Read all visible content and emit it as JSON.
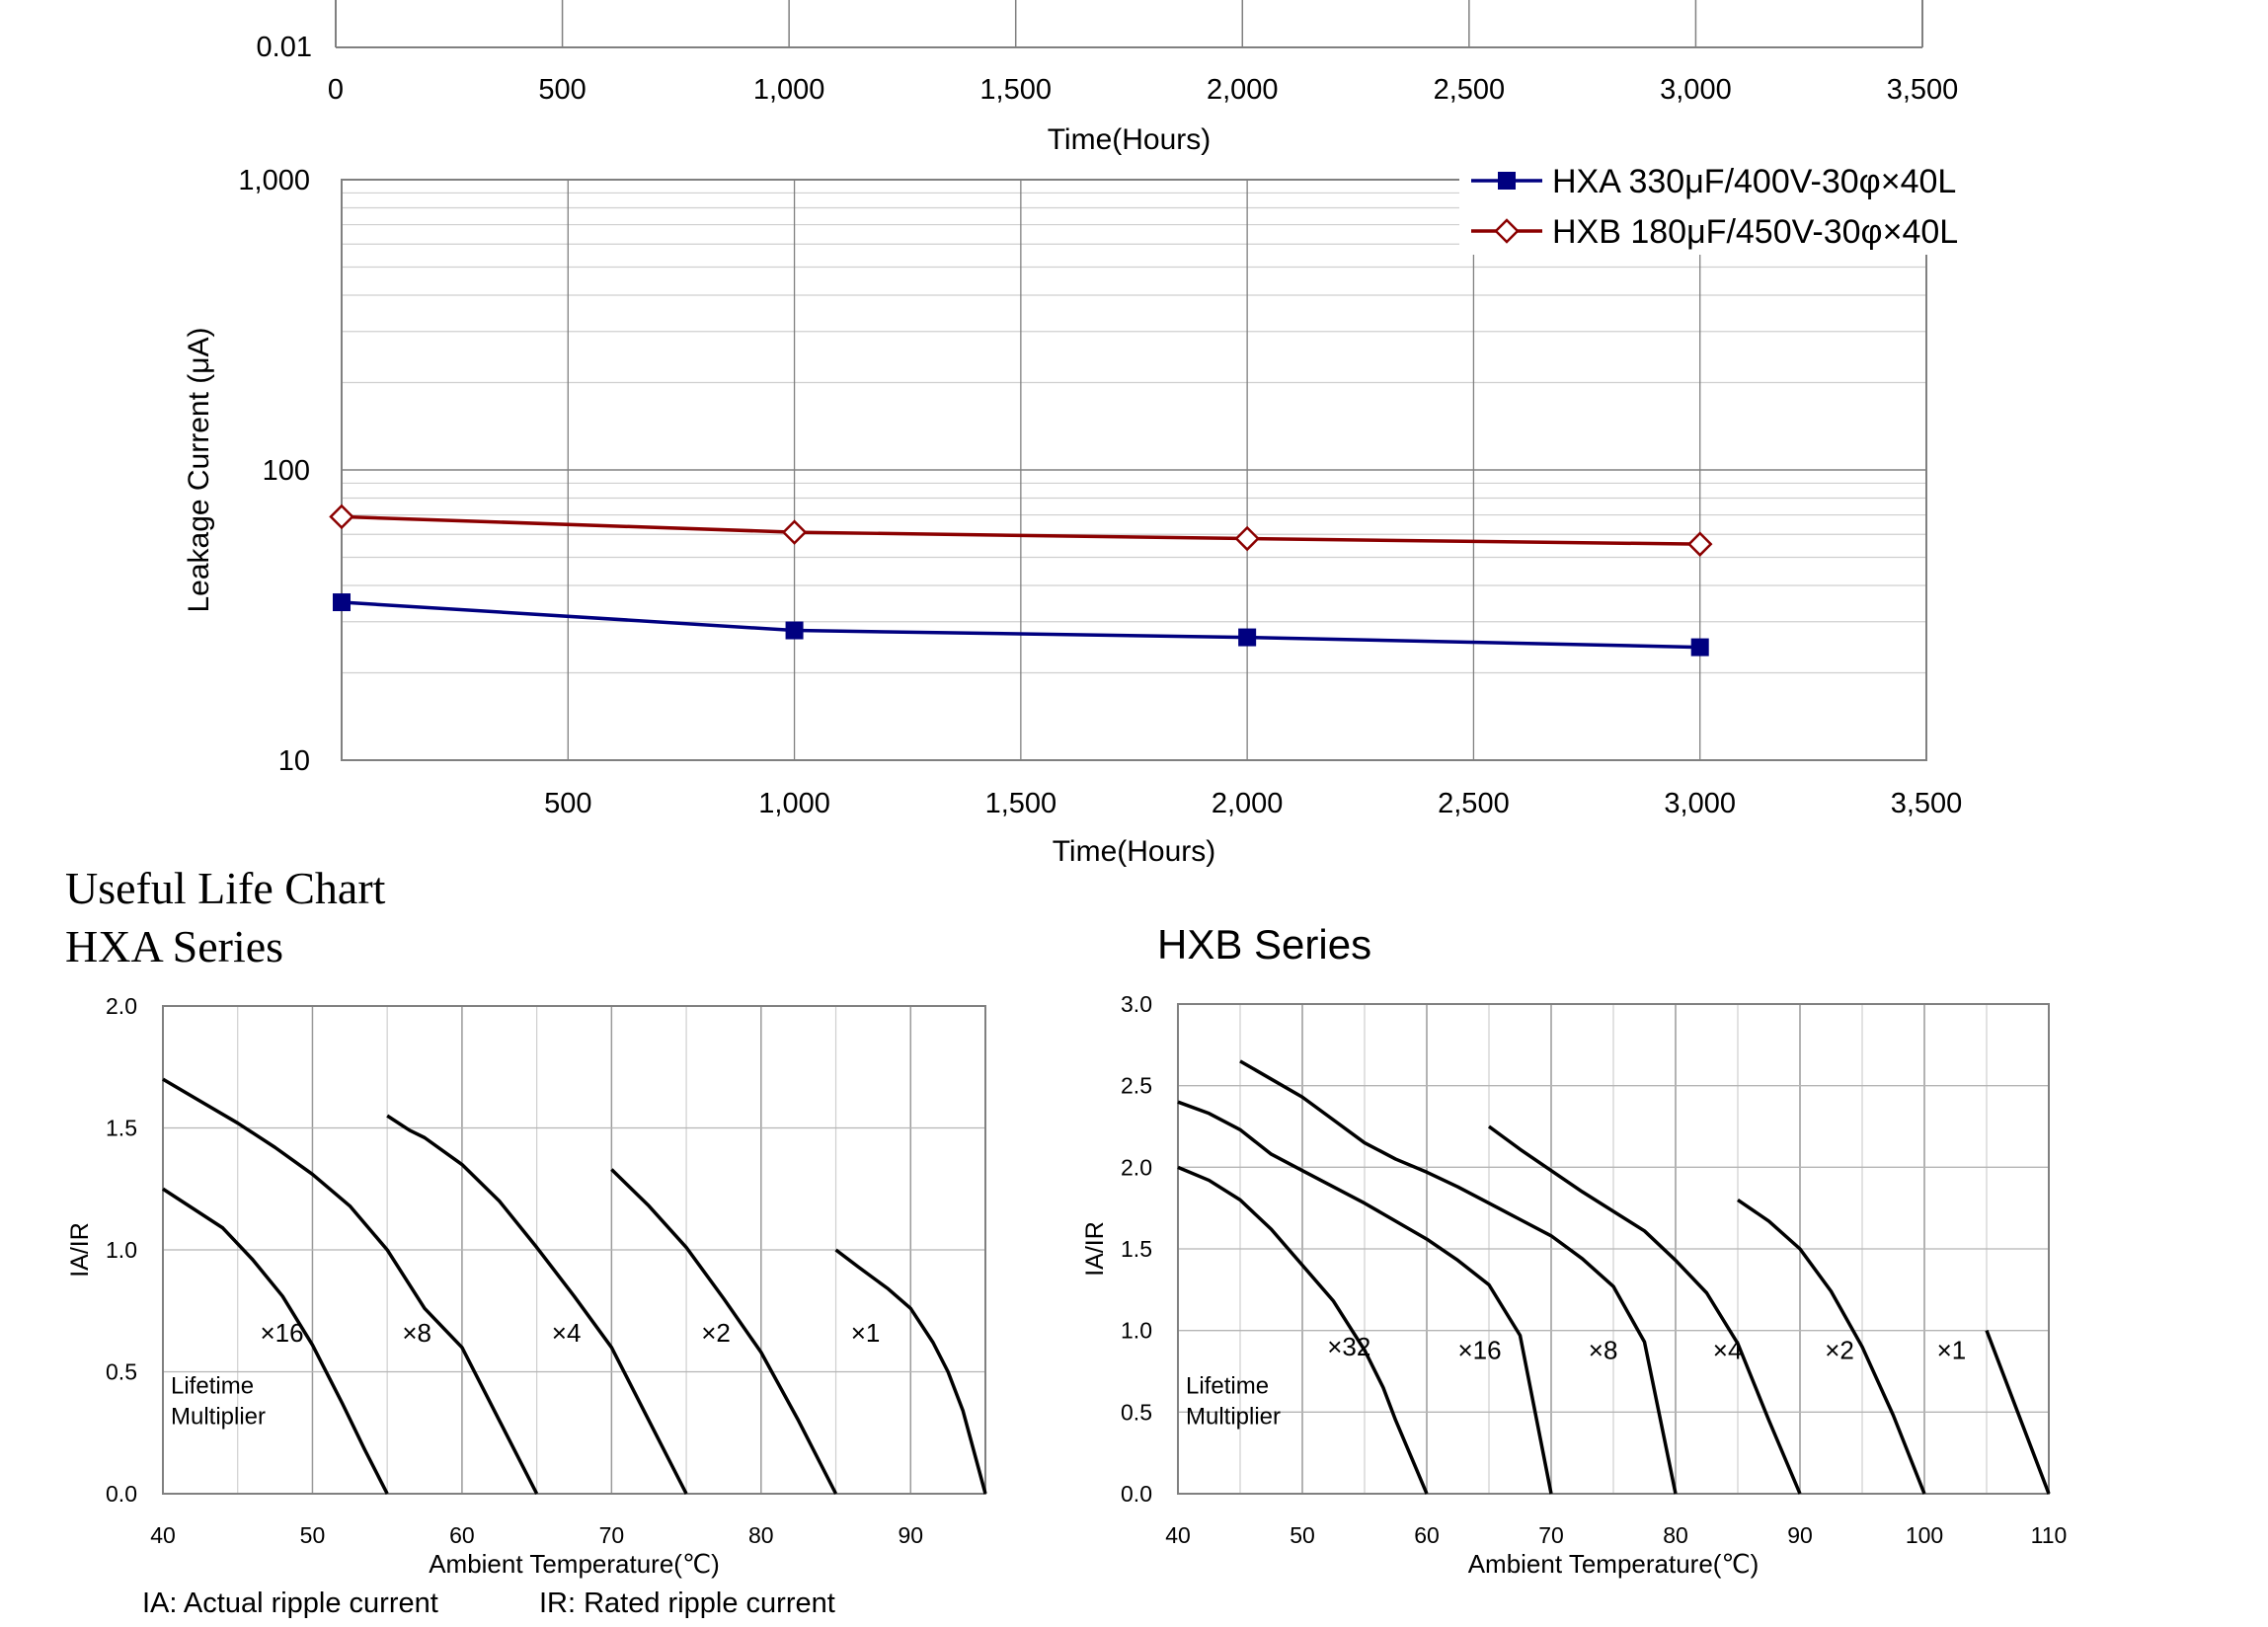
{
  "section_title": "Useful Life Chart",
  "footnotes": {
    "ia": "IA: Actual ripple current",
    "ir": "IR: Rated ripple current"
  },
  "colors": {
    "hxa_line": "#000080",
    "hxb_line": "#8B0000",
    "grid_major": "#808080",
    "grid_minor": "#cfcfcf",
    "curve": "#000000"
  },
  "chart_data": [
    {
      "id": "top-partial",
      "type": "line",
      "partial": true,
      "xlabel": "Time(Hours)",
      "ylabel": "",
      "x_ticks": [
        "0",
        "500",
        "1,000",
        "1,500",
        "2,000",
        "2,500",
        "3,000",
        "3,500"
      ],
      "y_ticks_visible": [
        "0.01"
      ],
      "xlim": [
        0,
        3500
      ],
      "grid": true
    },
    {
      "id": "leakage",
      "type": "line",
      "title": "",
      "xlabel": "Time(Hours)",
      "ylabel": "Leakage Current (μA)",
      "yscale": "log",
      "ylim": [
        10,
        1000
      ],
      "xlim": [
        0,
        3500
      ],
      "y_ticks": [
        "1,000",
        "100",
        "10"
      ],
      "x_ticks": [
        "500",
        "1,000",
        "1,500",
        "2,000",
        "2,500",
        "3,000",
        "3,500"
      ],
      "legend_position": "top-right",
      "grid": true,
      "series": [
        {
          "name": "HXA 330μF/400V-30φ×40L",
          "color": "#000080",
          "marker": "filled-square",
          "x": [
            0,
            1000,
            2000,
            3000
          ],
          "y": [
            35,
            28,
            26.5,
            24.5
          ]
        },
        {
          "name": "HXB 180μF/450V-30φ×40L",
          "color": "#8B0000",
          "marker": "open-diamond",
          "x": [
            0,
            1000,
            2000,
            3000
          ],
          "y": [
            69,
            61,
            58,
            55.5
          ]
        }
      ]
    },
    {
      "id": "hxa-life",
      "type": "line",
      "title": "HXA Series",
      "xlabel": "Ambient Temperature(℃)",
      "ylabel": "IA/IR",
      "xlim": [
        40,
        95
      ],
      "ylim": [
        0,
        2
      ],
      "x_ticks": [
        "40",
        "50",
        "60",
        "70",
        "80",
        "90"
      ],
      "y_ticks": [
        "2.0",
        "1.5",
        "1.0",
        "0.5",
        "0.0"
      ],
      "grid": true,
      "annotation": [
        "Lifetime",
        "Multiplier"
      ],
      "series": [
        {
          "name": "×16",
          "label_at": [
            46.5,
            0.66
          ],
          "x": [
            40,
            42,
            44,
            46,
            48,
            50,
            52,
            53.5,
            55
          ],
          "y": [
            1.25,
            1.17,
            1.09,
            0.96,
            0.81,
            0.61,
            0.37,
            0.18,
            0
          ]
        },
        {
          "name": "×8",
          "label_at": [
            56,
            0.66
          ],
          "x": [
            40,
            42.5,
            45,
            47.5,
            50,
            52.5,
            55,
            57.5,
            60,
            62.5,
            65
          ],
          "y": [
            1.7,
            1.61,
            1.52,
            1.42,
            1.31,
            1.18,
            1.0,
            0.76,
            0.6,
            0.3,
            0
          ]
        },
        {
          "name": "×4",
          "label_at": [
            66,
            0.66
          ],
          "x": [
            55,
            56.5,
            57.5,
            60,
            62.5,
            65,
            67.5,
            70,
            72.5,
            75
          ],
          "y": [
            1.55,
            1.49,
            1.46,
            1.35,
            1.2,
            1.01,
            0.81,
            0.6,
            0.3,
            0
          ]
        },
        {
          "name": "×2",
          "label_at": [
            76,
            0.66
          ],
          "x": [
            70,
            72.5,
            75,
            77.5,
            80,
            82.5,
            85
          ],
          "y": [
            1.33,
            1.18,
            1.01,
            0.8,
            0.58,
            0.3,
            0
          ]
        },
        {
          "name": "×1",
          "label_at": [
            86,
            0.66
          ],
          "x": [
            85,
            86.5,
            88.5,
            90,
            91.5,
            92.5,
            93.5,
            95
          ],
          "y": [
            1.0,
            0.93,
            0.84,
            0.76,
            0.62,
            0.5,
            0.34,
            0
          ]
        }
      ]
    },
    {
      "id": "hxb-life",
      "type": "line",
      "title": "HXB Series",
      "xlabel": "Ambient Temperature(℃)",
      "ylabel": "IA/IR",
      "xlim": [
        40,
        110
      ],
      "ylim": [
        0,
        3
      ],
      "x_ticks": [
        "40",
        "50",
        "60",
        "70",
        "80",
        "90",
        "100",
        "110"
      ],
      "y_ticks": [
        "3.0",
        "2.5",
        "2.0",
        "1.5",
        "1.0",
        "0.5",
        "0.0"
      ],
      "grid": true,
      "annotation": [
        "Lifetime",
        "Multiplier"
      ],
      "series": [
        {
          "name": "×32",
          "label_at": [
            52,
            0.9
          ],
          "x": [
            40,
            42.5,
            45,
            47.5,
            50,
            52.5,
            55,
            56.5,
            57.5,
            59,
            60
          ],
          "y": [
            2.0,
            1.92,
            1.8,
            1.62,
            1.4,
            1.18,
            0.88,
            0.65,
            0.45,
            0.18,
            0
          ]
        },
        {
          "name": "×16",
          "label_at": [
            62.5,
            0.88
          ],
          "x": [
            40,
            42.5,
            45,
            47.5,
            50,
            55,
            60,
            62.5,
            65,
            67.5,
            70
          ],
          "y": [
            2.4,
            2.33,
            2.23,
            2.08,
            1.98,
            1.78,
            1.56,
            1.43,
            1.28,
            0.97,
            0
          ]
        },
        {
          "name": "×8",
          "label_at": [
            73,
            0.88
          ],
          "x": [
            45,
            47.5,
            50,
            52.5,
            55,
            57.5,
            60,
            62.5,
            65,
            67.5,
            70,
            72.5,
            75,
            77.5,
            80
          ],
          "y": [
            2.65,
            2.54,
            2.43,
            2.29,
            2.15,
            2.05,
            1.97,
            1.88,
            1.78,
            1.68,
            1.58,
            1.44,
            1.27,
            0.93,
            0
          ]
        },
        {
          "name": "×4",
          "label_at": [
            83,
            0.88
          ],
          "x": [
            65,
            67.5,
            70,
            72.5,
            75,
            77.5,
            80,
            82.5,
            85,
            87.5,
            90
          ],
          "y": [
            2.25,
            2.11,
            1.98,
            1.85,
            1.73,
            1.61,
            1.43,
            1.23,
            0.92,
            0.45,
            0
          ]
        },
        {
          "name": "×2",
          "label_at": [
            92,
            0.88
          ],
          "x": [
            85,
            87.5,
            90,
            92.5,
            95,
            97.5,
            100
          ],
          "y": [
            1.8,
            1.67,
            1.5,
            1.24,
            0.9,
            0.48,
            0
          ]
        },
        {
          "name": "×1",
          "label_at": [
            101,
            0.88
          ],
          "x": [
            105,
            107.5,
            110
          ],
          "y": [
            1.0,
            0.5,
            0
          ]
        }
      ]
    }
  ]
}
